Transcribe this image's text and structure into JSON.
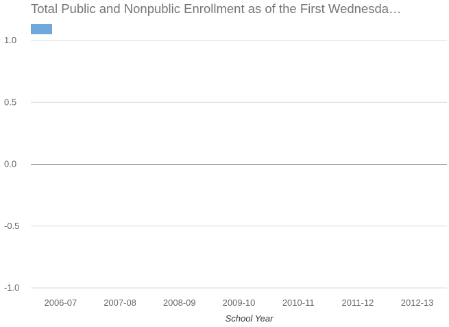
{
  "colors": {
    "series": "#6fa8dc",
    "grid": "#d9d9d9",
    "zero_line": "#666666",
    "text": "#666666",
    "title": "#757575"
  },
  "chart_data": {
    "type": "bar",
    "title": "Total Public and Nonpublic Enrollment as of the First Wednesda…",
    "xlabel": "School Year",
    "ylabel": "",
    "categories": [
      "2006-07",
      "2007-08",
      "2008-09",
      "2009-10",
      "2010-11",
      "2011-12",
      "2012-13"
    ],
    "series": [
      {
        "values": [
          0,
          0,
          0,
          0,
          0,
          0,
          0
        ]
      }
    ],
    "yticks": [
      "1.0",
      "0.5",
      "0.0",
      "-0.5",
      "-1.0"
    ],
    "ylim": [
      -1.0,
      1.0
    ],
    "grid": true,
    "legend": "top-left"
  }
}
